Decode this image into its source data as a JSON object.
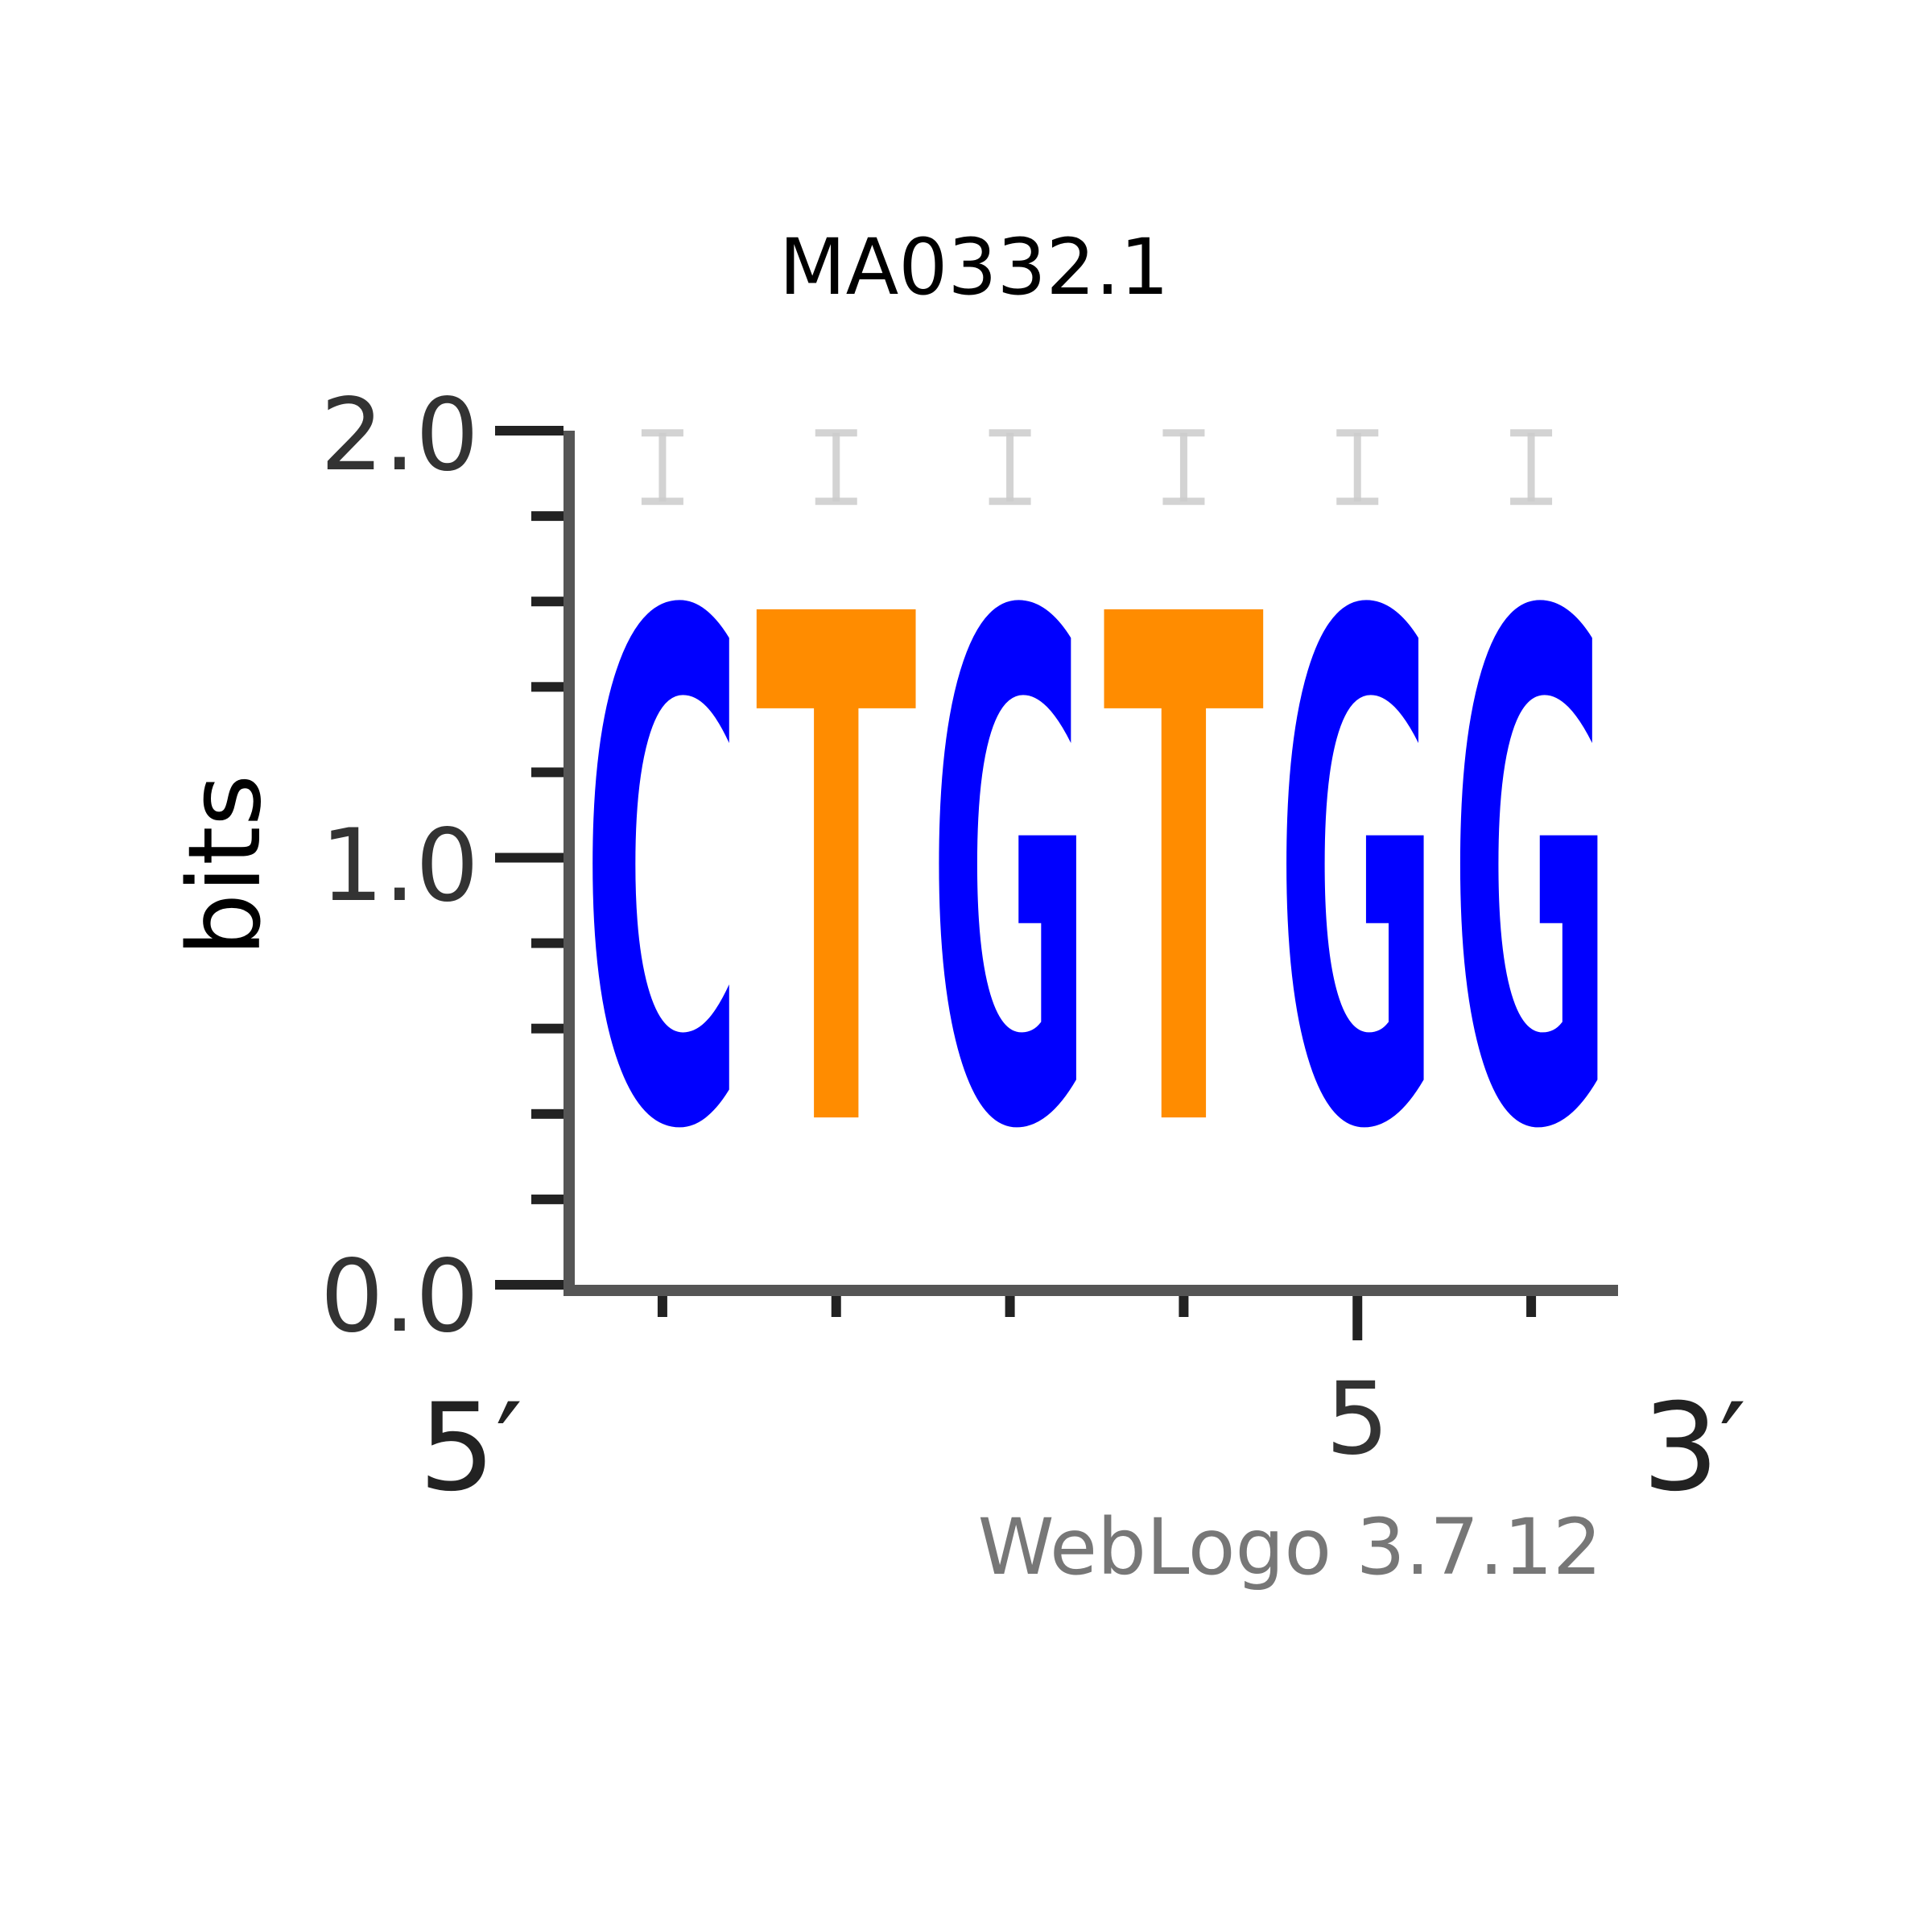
{
  "chart_data": {
    "type": "sequence-logo",
    "title": "MA0332.1",
    "ylabel": "bits",
    "ylim": [
      0,
      2
    ],
    "yticks": [
      "0.0",
      "1.0",
      "2.0"
    ],
    "x_labeled_position": 5,
    "x_label": "5",
    "five_prime_label": "5′",
    "three_prime_label": "3′",
    "credit": "WebLogo 3.7.12",
    "colors": {
      "C": "#0000ff",
      "G": "#0000ff",
      "T": "#ff8c00",
      "axis": "#555555",
      "errorbar": "#cccccc"
    },
    "positions": [
      {
        "pos": 1,
        "letter": "C",
        "bits": 1.91
      },
      {
        "pos": 2,
        "letter": "T",
        "bits": 1.91
      },
      {
        "pos": 3,
        "letter": "G",
        "bits": 1.91
      },
      {
        "pos": 4,
        "letter": "T",
        "bits": 1.91
      },
      {
        "pos": 5,
        "letter": "G",
        "bits": 1.91
      },
      {
        "pos": 6,
        "letter": "G",
        "bits": 1.91
      }
    ]
  }
}
